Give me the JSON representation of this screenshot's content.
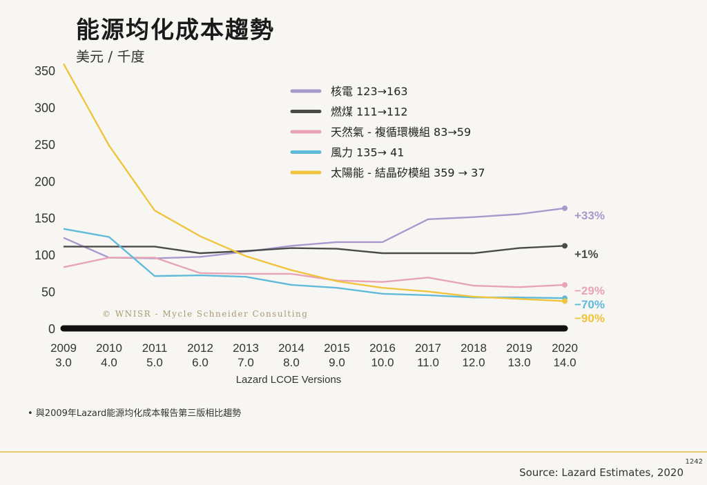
{
  "title": "能源均化成本趨勢",
  "subtitle": "美元 / 千度",
  "watermark": "© WNISR - Mycle Schneider Consulting",
  "footnote": "• 與2009年Lazard能源均化成本報告第三版相比趨勢",
  "source": "Source: Lazard Estimates, 2020",
  "page_number": "1242",
  "chart_data": {
    "type": "line",
    "title": "能源均化成本趨勢",
    "ylabel": "美元 / 千度",
    "xlabel": "Lazard LCOE Versions",
    "ylim": [
      0,
      350
    ],
    "yticks": [
      0,
      50,
      100,
      150,
      200,
      250,
      300,
      350
    ],
    "x": [
      "2009",
      "2010",
      "2011",
      "2012",
      "2013",
      "2014",
      "2015",
      "2016",
      "2017",
      "2018",
      "2019",
      "2020"
    ],
    "x_versions": [
      "3.0",
      "4.0",
      "5.0",
      "6.0",
      "7.0",
      "8.0",
      "9.0",
      "10.0",
      "11.0",
      "12.0",
      "13.0",
      "14.0"
    ],
    "grid": false,
    "legend_position": "top-center",
    "series": [
      {
        "name": "核電 123→163",
        "color": "#a898cc",
        "end_label": "+33%",
        "values": [
          123,
          96,
          95,
          97,
          104,
          112,
          117,
          117,
          148,
          151,
          155,
          163
        ]
      },
      {
        "name": "燃煤 111→112",
        "color": "#4a4a4a",
        "end_label": "+1%",
        "values": [
          111,
          111,
          111,
          102,
          105,
          109,
          108,
          102,
          102,
          102,
          109,
          112
        ]
      },
      {
        "name": "天然氣 - 複循環機組 83→59",
        "color": "#e8a3b6",
        "end_label": "−29%",
        "values": [
          83,
          96,
          96,
          75,
          74,
          74,
          65,
          63,
          69,
          58,
          56,
          59
        ]
      },
      {
        "name": "風力 135→ 41",
        "color": "#5fbad9",
        "end_label": "−70%",
        "values": [
          135,
          124,
          71,
          72,
          70,
          59,
          55,
          47,
          45,
          42,
          42,
          41
        ]
      },
      {
        "name": "太陽能 - 結晶矽模組 359 → 37",
        "color": "#f0c43c",
        "end_label": "−90%",
        "values": [
          359,
          248,
          160,
          125,
          98,
          79,
          64,
          55,
          50,
          43,
          40,
          37
        ]
      }
    ]
  }
}
